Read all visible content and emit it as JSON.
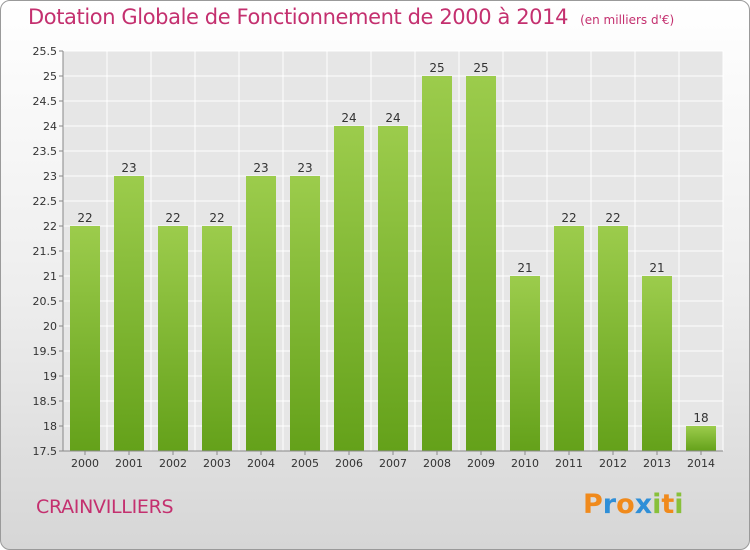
{
  "header": {
    "title": "Dotation Globale de Fonctionnement de 2000 à 2014",
    "subtitle": "(en milliers d'€)"
  },
  "footer": {
    "commune": "CRAINVILLIERS",
    "logo_text": "Proxiti"
  },
  "colors": {
    "title": "#c4306f",
    "bar_top": "#9ccc4c",
    "bar_bottom": "#64a11a",
    "logo_letters": [
      "#f08a1c",
      "#2f8fd8",
      "#f08a1c",
      "#2f8fd8",
      "#88c03a",
      "#f08a1c",
      "#88c03a"
    ]
  },
  "chart_data": {
    "type": "bar",
    "categories": [
      "2000",
      "2001",
      "2002",
      "2003",
      "2004",
      "2005",
      "2006",
      "2007",
      "2008",
      "2009",
      "2010",
      "2011",
      "2012",
      "2013",
      "2014"
    ],
    "values": [
      22,
      23,
      22,
      22,
      23,
      23,
      24,
      24,
      25,
      25,
      21,
      22,
      22,
      21,
      18
    ],
    "ylim": [
      17.5,
      25.5
    ],
    "yticks": [
      "17.5",
      "18",
      "18.5",
      "19",
      "19.5",
      "20",
      "20.5",
      "21",
      "21.5",
      "22",
      "22.5",
      "23",
      "23.5",
      "24",
      "24.5",
      "25",
      "25.5"
    ],
    "grid": true,
    "xlabel": "",
    "ylabel": ""
  }
}
